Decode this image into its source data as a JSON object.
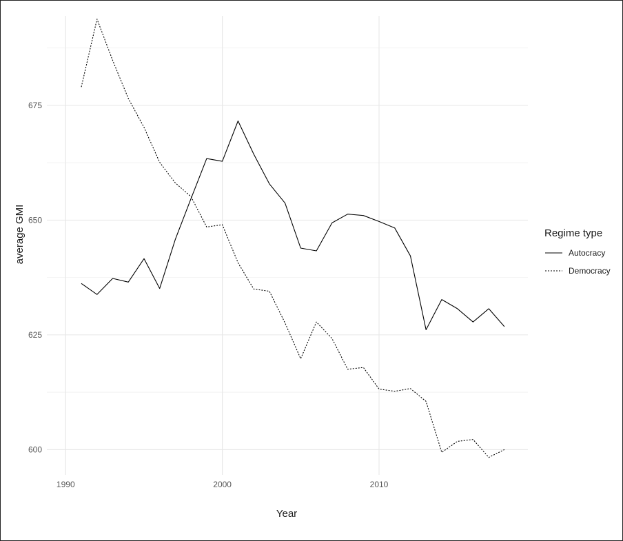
{
  "chart_data": {
    "type": "line",
    "title": "",
    "xlabel": "Year",
    "ylabel": "average GMI",
    "xlim": [
      1988.8,
      2019.5
    ],
    "ylim": [
      594.5,
      694.5
    ],
    "x_ticks": [
      1990,
      2000,
      2010
    ],
    "y_ticks": [
      600,
      625,
      650,
      675
    ],
    "grid": true,
    "legend": {
      "title": "Regime type",
      "position": "right",
      "entries": [
        "Autocracy",
        "Democracy"
      ]
    },
    "x": [
      1991,
      1992,
      1993,
      1994,
      1995,
      1996,
      1997,
      1998,
      1999,
      2000,
      2001,
      2002,
      2003,
      2004,
      2005,
      2006,
      2007,
      2008,
      2009,
      2010,
      2011,
      2012,
      2013,
      2014,
      2015,
      2016,
      2017,
      2018
    ],
    "series": [
      {
        "name": "Autocracy",
        "line_style": "solid",
        "values": [
          636.2,
          633.8,
          637.3,
          636.5,
          641.6,
          635.1,
          645.8,
          654.7,
          663.4,
          662.8,
          671.6,
          664.4,
          657.9,
          653.7,
          643.9,
          643.3,
          649.4,
          651.3,
          651.0,
          649.7,
          648.3,
          642.2,
          626.1,
          632.7,
          630.7,
          627.8,
          630.7,
          626.8
        ]
      },
      {
        "name": "Democracy",
        "line_style": "dotted",
        "values": [
          679.0,
          693.8,
          684.8,
          676.5,
          670.2,
          662.6,
          658.1,
          655.1,
          648.5,
          649.0,
          640.7,
          635.0,
          634.5,
          627.6,
          619.8,
          627.8,
          624.2,
          617.5,
          617.9,
          613.2,
          612.7,
          613.3,
          610.5,
          599.4,
          601.8,
          602.2,
          598.3,
          600.0
        ]
      }
    ]
  }
}
